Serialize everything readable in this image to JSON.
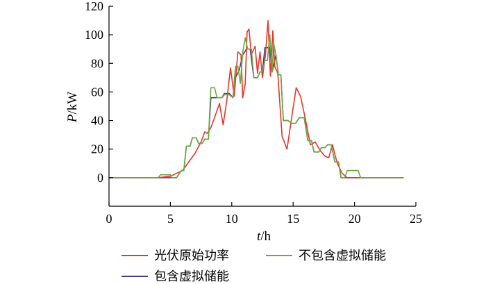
{
  "chart_data": {
    "type": "line",
    "xlabel": {
      "italic": "t",
      "unit": "/h"
    },
    "ylabel": {
      "italic": "P",
      "unit": "/kW"
    },
    "xlim": [
      0,
      25
    ],
    "ylim": [
      -20,
      120
    ],
    "xticks": [
      "0",
      "5",
      "10",
      "15",
      "20",
      "25"
    ],
    "yticks": [
      "0",
      "20",
      "40",
      "60",
      "80",
      "100",
      "120"
    ],
    "grid": false,
    "legend_position": "bottom",
    "series": [
      {
        "name": "光伏原始功率",
        "color": "#e8332a",
        "points": [
          [
            0,
            0
          ],
          [
            4,
            0
          ],
          [
            5,
            1
          ],
          [
            5.5,
            3
          ],
          [
            6,
            5
          ],
          [
            6.5,
            11
          ],
          [
            7,
            17
          ],
          [
            7.5,
            25
          ],
          [
            7.8,
            32
          ],
          [
            8,
            31
          ],
          [
            8.3,
            35
          ],
          [
            8.6,
            42
          ],
          [
            9,
            52
          ],
          [
            9.3,
            37
          ],
          [
            9.6,
            54
          ],
          [
            9.9,
            77
          ],
          [
            10.2,
            57
          ],
          [
            10.5,
            88
          ],
          [
            10.75,
            86
          ],
          [
            10.9,
            56
          ],
          [
            11.1,
            66
          ],
          [
            11.25,
            102
          ],
          [
            11.4,
            104
          ],
          [
            11.6,
            86
          ],
          [
            11.9,
            92
          ],
          [
            12.1,
            73
          ],
          [
            12.3,
            88
          ],
          [
            12.5,
            70
          ],
          [
            12.75,
            86
          ],
          [
            12.95,
            110
          ],
          [
            13.15,
            71
          ],
          [
            13.35,
            103
          ],
          [
            13.5,
            78
          ],
          [
            13.75,
            73
          ],
          [
            14.1,
            29
          ],
          [
            14.5,
            20
          ],
          [
            14.9,
            43
          ],
          [
            15.25,
            63
          ],
          [
            15.6,
            57
          ],
          [
            16,
            41
          ],
          [
            16.4,
            23
          ],
          [
            16.8,
            25
          ],
          [
            17.2,
            19
          ],
          [
            17.6,
            15
          ],
          [
            17.9,
            14
          ],
          [
            18.2,
            23
          ],
          [
            18.6,
            10
          ],
          [
            19,
            3
          ],
          [
            19.4,
            0
          ],
          [
            24,
            0
          ]
        ]
      },
      {
        "name": "不包含虚拟储能",
        "color": "#6aa940",
        "points": [
          [
            0,
            0
          ],
          [
            4,
            0
          ],
          [
            4.2,
            2
          ],
          [
            5,
            2
          ],
          [
            5.1,
            0
          ],
          [
            5.5,
            0
          ],
          [
            5.9,
            5
          ],
          [
            6.1,
            5
          ],
          [
            6.3,
            22
          ],
          [
            6.6,
            22
          ],
          [
            6.8,
            28
          ],
          [
            7.1,
            28
          ],
          [
            7.3,
            24
          ],
          [
            7.6,
            24
          ],
          [
            7.8,
            27
          ],
          [
            8.1,
            27
          ],
          [
            8.3,
            63
          ],
          [
            8.6,
            63
          ],
          [
            8.8,
            56
          ],
          [
            9.2,
            56
          ],
          [
            9.4,
            58
          ],
          [
            9.8,
            58
          ],
          [
            10.1,
            56
          ],
          [
            10.3,
            78
          ],
          [
            10.5,
            78
          ],
          [
            10.7,
            66
          ],
          [
            10.9,
            88
          ],
          [
            11.1,
            98
          ],
          [
            11.3,
            90
          ],
          [
            11.6,
            90
          ],
          [
            11.8,
            70
          ],
          [
            12.1,
            70
          ],
          [
            12.3,
            74
          ],
          [
            12.5,
            74
          ],
          [
            12.7,
            82
          ],
          [
            12.9,
            82
          ],
          [
            13.1,
            100
          ],
          [
            13.3,
            74
          ],
          [
            13.4,
            95
          ],
          [
            13.6,
            86
          ],
          [
            13.8,
            72
          ],
          [
            14,
            72
          ],
          [
            14.2,
            40
          ],
          [
            14.6,
            40
          ],
          [
            14.9,
            38
          ],
          [
            15.2,
            38
          ],
          [
            15.5,
            42
          ],
          [
            15.9,
            42
          ],
          [
            16.2,
            26
          ],
          [
            16.5,
            26
          ],
          [
            16.7,
            18
          ],
          [
            17.1,
            18
          ],
          [
            17.3,
            21
          ],
          [
            17.6,
            21
          ],
          [
            17.8,
            23
          ],
          [
            18.1,
            23
          ],
          [
            18.4,
            11
          ],
          [
            18.7,
            11
          ],
          [
            18.9,
            0
          ],
          [
            19.2,
            0
          ],
          [
            19.4,
            5
          ],
          [
            20.3,
            5
          ],
          [
            20.5,
            0
          ],
          [
            24,
            0
          ]
        ]
      },
      {
        "name": "包含虚拟储能",
        "color": "#3f3c8c",
        "points": [
          [
            0,
            0
          ],
          [
            4,
            0
          ],
          [
            5.5,
            0
          ],
          [
            5.9,
            5
          ],
          [
            6.1,
            5
          ],
          [
            6.3,
            22
          ],
          [
            6.6,
            22
          ],
          [
            6.8,
            28
          ],
          [
            7.1,
            28
          ],
          [
            7.3,
            24
          ],
          [
            7.6,
            24
          ],
          [
            7.8,
            27
          ],
          [
            8.1,
            27
          ],
          [
            8.3,
            56
          ],
          [
            8.8,
            56
          ],
          [
            9.2,
            56
          ],
          [
            9.4,
            59
          ],
          [
            9.8,
            59
          ],
          [
            10.1,
            56
          ],
          [
            10.3,
            70
          ],
          [
            10.6,
            75
          ],
          [
            10.9,
            86
          ],
          [
            11.2,
            90
          ],
          [
            11.5,
            90
          ],
          [
            11.8,
            70
          ],
          [
            12.1,
            70
          ],
          [
            12.3,
            74
          ],
          [
            12.5,
            74
          ],
          [
            12.7,
            91
          ],
          [
            13.1,
            91
          ],
          [
            13.3,
            74
          ],
          [
            13.6,
            86
          ],
          [
            13.8,
            72
          ],
          [
            14,
            72
          ],
          [
            14.2,
            40
          ],
          [
            14.6,
            40
          ],
          [
            14.9,
            38
          ],
          [
            15.2,
            38
          ],
          [
            15.5,
            42
          ],
          [
            15.9,
            42
          ],
          [
            16.2,
            26
          ],
          [
            16.5,
            26
          ],
          [
            16.7,
            18
          ],
          [
            17.1,
            18
          ],
          [
            17.3,
            21
          ],
          [
            17.6,
            21
          ],
          [
            17.8,
            23
          ],
          [
            18.1,
            23
          ],
          [
            18.4,
            11
          ],
          [
            18.7,
            11
          ],
          [
            18.9,
            0
          ],
          [
            24,
            0
          ]
        ]
      }
    ]
  }
}
